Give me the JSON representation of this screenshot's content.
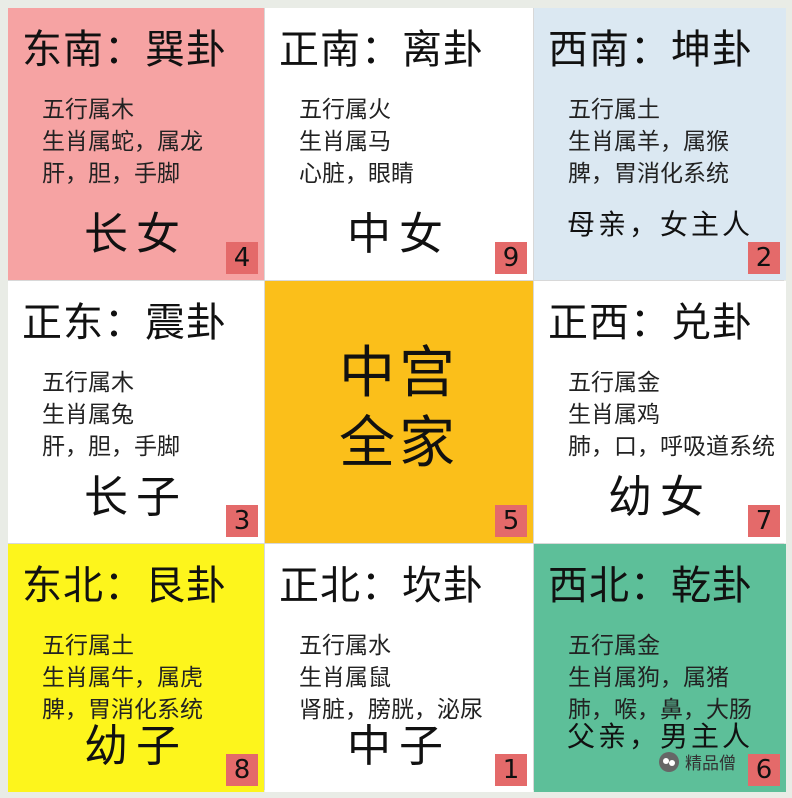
{
  "cells": [
    {
      "title": "东南：巽卦",
      "lines": [
        "五行属木",
        "生肖属蛇，属龙",
        "肝，胆，手脚"
      ],
      "role": "长女",
      "num": "4",
      "color": "#f6a3a3"
    },
    {
      "title": "正南：离卦",
      "lines": [
        "五行属火",
        "生肖属马",
        "心脏，眼睛"
      ],
      "role": "中女",
      "num": "9",
      "color": "#ffffff"
    },
    {
      "title": "西南：坤卦",
      "lines": [
        "五行属土",
        "生肖属羊，属猴",
        "脾，胃消化系统"
      ],
      "role": "母亲，女主人",
      "num": "2",
      "color": "#dbe8f2"
    },
    {
      "title": "正东：震卦",
      "lines": [
        "五行属木",
        "生肖属兔",
        "肝，胆，手脚"
      ],
      "role": "长子",
      "num": "3",
      "color": "#ffffff"
    },
    {
      "center": [
        "中宫",
        "全家"
      ],
      "num": "5",
      "color": "#fbbf1a"
    },
    {
      "title": "正西：兑卦",
      "lines": [
        "五行属金",
        "生肖属鸡",
        "肺，口，呼吸道系统"
      ],
      "role": "幼女",
      "num": "7",
      "color": "#ffffff"
    },
    {
      "title": "东北：艮卦",
      "lines": [
        "五行属土",
        "生肖属牛，属虎",
        "脾，胃消化系统"
      ],
      "role": "幼子",
      "num": "8",
      "color": "#fdf51c"
    },
    {
      "title": "正北：坎卦",
      "lines": [
        "五行属水",
        "生肖属鼠",
        "肾脏，膀胱，泌尿"
      ],
      "role": "中子",
      "num": "1",
      "color": "#ffffff"
    },
    {
      "title": "西北：乾卦",
      "lines": [
        "五行属金",
        "生肖属狗，属猪",
        "肺，喉，鼻，大肠"
      ],
      "role": "父亲，男主人",
      "num": "6",
      "color": "#5dbf99"
    }
  ],
  "watermark": {
    "text": "精品僧",
    "icon": "wechat-icon"
  },
  "colors": {
    "number_badge": "#e46a6a",
    "border": "#d8d8d8"
  }
}
